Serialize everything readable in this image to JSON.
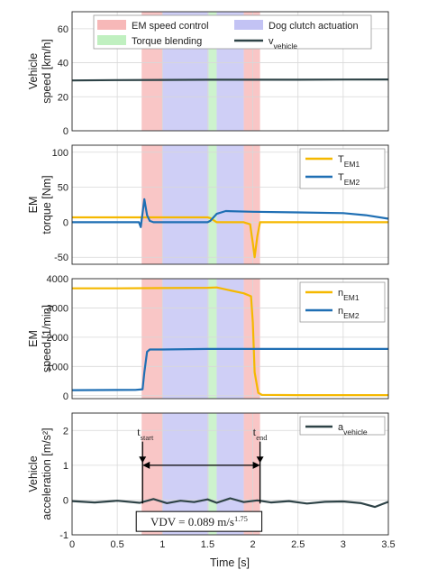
{
  "chart_data": [
    {
      "type": "line",
      "ylabel_lines": [
        "Vehicle",
        "speed [km/h]"
      ],
      "xlim": [
        0,
        3.5
      ],
      "ylim": [
        0,
        70
      ],
      "yticks": [
        0,
        20,
        40,
        60
      ],
      "grid": true,
      "legend": {
        "placement": "top",
        "entries": [
          {
            "label": "EM speed control",
            "color": "#f7b8b8",
            "kind": "patch"
          },
          {
            "label": "Dog clutch actuation",
            "color": "#c3c3f4",
            "kind": "patch"
          },
          {
            "label": "Torque blending",
            "color": "#c0f0c0",
            "kind": "patch"
          },
          {
            "label": "v",
            "sub": "vehicle",
            "color": "#2e4347",
            "kind": "line"
          }
        ]
      },
      "series": [
        {
          "name": "v_vehicle",
          "color": "#2e4347",
          "x": [
            0,
            0.5,
            1.0,
            1.5,
            2.0,
            2.5,
            3.0,
            3.5
          ],
          "y": [
            29.6,
            29.8,
            29.9,
            30.0,
            30.0,
            30.0,
            30.1,
            30.2
          ]
        }
      ]
    },
    {
      "type": "line",
      "ylabel_lines": [
        "EM",
        "torque [Nm]"
      ],
      "xlim": [
        0,
        3.5
      ],
      "ylim": [
        -60,
        110
      ],
      "yticks": [
        -50,
        0,
        50,
        100
      ],
      "grid": true,
      "legend": {
        "placement": "top-right",
        "entries": [
          {
            "label": "T",
            "sub": "EM1",
            "color": "#f5b800",
            "kind": "line"
          },
          {
            "label": "T",
            "sub": "EM2",
            "color": "#1f6fb4",
            "kind": "line"
          }
        ]
      },
      "series": [
        {
          "name": "T_EM1",
          "color": "#f5b800",
          "x": [
            0,
            0.5,
            0.75,
            1.0,
            1.5,
            1.53,
            1.6,
            1.9,
            1.97,
            2.0,
            2.02,
            2.05,
            2.08,
            2.12,
            2.5,
            3.0,
            3.5
          ],
          "y": [
            7,
            7,
            7,
            7,
            7,
            6,
            0,
            0,
            -3,
            -30,
            -50,
            -20,
            0,
            0,
            0,
            0,
            0
          ]
        },
        {
          "name": "T_EM2",
          "color": "#1f6fb4",
          "x": [
            0,
            0.74,
            0.76,
            0.8,
            0.83,
            0.86,
            0.9,
            1.0,
            1.5,
            1.53,
            1.6,
            1.7,
            2.0,
            2.5,
            3.0,
            3.25,
            3.5
          ],
          "y": [
            0,
            0,
            -7,
            33,
            10,
            2,
            0,
            0,
            0,
            2,
            12,
            16,
            15,
            14,
            13,
            10,
            5
          ]
        }
      ]
    },
    {
      "type": "line",
      "ylabel_lines": [
        "EM",
        "speed [1/min]"
      ],
      "xlim": [
        0,
        3.5
      ],
      "ylim": [
        -100,
        4000
      ],
      "yticks": [
        0,
        1000,
        2000,
        3000,
        4000
      ],
      "grid": true,
      "legend": {
        "placement": "top-right",
        "entries": [
          {
            "label": "n",
            "sub": "EM1",
            "color": "#f5b800",
            "kind": "line"
          },
          {
            "label": "n",
            "sub": "EM2",
            "color": "#1f6fb4",
            "kind": "line"
          }
        ]
      },
      "series": [
        {
          "name": "n_EM1",
          "color": "#f5b800",
          "x": [
            0,
            0.5,
            1.0,
            1.5,
            1.6,
            1.75,
            1.9,
            1.98,
            2.0,
            2.02,
            2.06,
            2.1,
            2.5,
            3.0,
            3.5
          ],
          "y": [
            3670,
            3670,
            3680,
            3690,
            3700,
            3600,
            3500,
            3400,
            2500,
            800,
            100,
            30,
            20,
            20,
            20
          ]
        },
        {
          "name": "n_EM2",
          "color": "#1f6fb4",
          "x": [
            0,
            0.7,
            0.78,
            0.8,
            0.83,
            0.86,
            0.9,
            1.0,
            1.5,
            2.0,
            2.5,
            3.0,
            3.5
          ],
          "y": [
            190,
            200,
            220,
            800,
            1500,
            1580,
            1580,
            1580,
            1600,
            1600,
            1600,
            1600,
            1600
          ]
        }
      ]
    },
    {
      "type": "line",
      "ylabel_lines": [
        "Vehicle",
        "acceleration [m/s²]"
      ],
      "xlabel": "Time [s]",
      "xlim": [
        0,
        3.5
      ],
      "ylim": [
        -1,
        2.5
      ],
      "yticks": [
        -1,
        0,
        1,
        2
      ],
      "xticks": [
        0,
        0.5,
        1,
        1.5,
        2,
        2.5,
        3,
        3.5
      ],
      "grid": true,
      "legend": {
        "placement": "top-right",
        "entries": [
          {
            "label": "a",
            "sub": "vehicle",
            "color": "#2e4347",
            "kind": "line"
          }
        ]
      },
      "series": [
        {
          "name": "a_vehicle",
          "color": "#2e4347",
          "x": [
            0,
            0.25,
            0.5,
            0.75,
            0.9,
            1.05,
            1.2,
            1.35,
            1.5,
            1.6,
            1.75,
            1.9,
            2.05,
            2.2,
            2.4,
            2.6,
            2.8,
            3.0,
            3.2,
            3.35,
            3.5
          ],
          "y": [
            -0.03,
            -0.07,
            -0.02,
            -0.08,
            0.03,
            -0.09,
            -0.02,
            -0.06,
            0.02,
            -0.08,
            0.05,
            -0.06,
            -0.01,
            -0.07,
            -0.03,
            -0.1,
            -0.05,
            -0.04,
            -0.09,
            -0.2,
            -0.05
          ]
        }
      ],
      "annotations": {
        "t_start": {
          "main": "t",
          "sub": "start",
          "x": 0.78
        },
        "t_end": {
          "main": "t",
          "sub": "end",
          "x": 2.08
        },
        "arrow_y": 1.0,
        "vdv_box": {
          "text": "VDV = 0.089 m/s",
          "sup": "1.75"
        }
      }
    }
  ],
  "phase_bands": [
    {
      "x0": 0.77,
      "x1": 1.0,
      "color": "#f7b8b8"
    },
    {
      "x0": 1.0,
      "x1": 1.51,
      "color": "#c3c3f4"
    },
    {
      "x0": 1.51,
      "x1": 1.6,
      "color": "#c0f0c0"
    },
    {
      "x0": 1.6,
      "x1": 1.9,
      "color": "#c3c3f4"
    },
    {
      "x0": 1.9,
      "x1": 2.08,
      "color": "#f7b8b8"
    }
  ],
  "xlabel": "Time [s]"
}
